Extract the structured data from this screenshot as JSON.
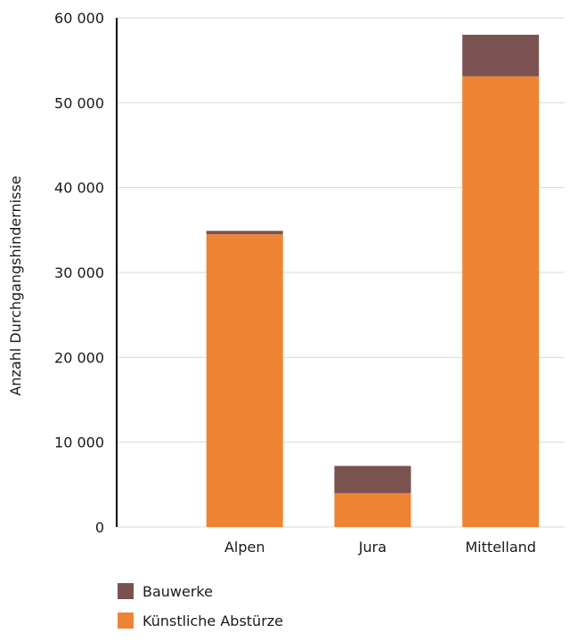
{
  "chart_data": {
    "type": "bar",
    "stacked": true,
    "categories": [
      "Alpen",
      "Jura",
      "Mittelland"
    ],
    "series": [
      {
        "name": "Künstliche Abstürze",
        "color": "#ee8433",
        "values": [
          34500,
          4000,
          53100
        ]
      },
      {
        "name": "Bauwerke",
        "color": "#7a5250",
        "values": [
          400,
          3200,
          4900
        ]
      }
    ],
    "ylabel": "Anzahl Durchgangshindernisse",
    "xlabel": "",
    "ylim": [
      0,
      60000
    ],
    "yticks": [
      0,
      10000,
      20000,
      30000,
      40000,
      50000,
      60000
    ],
    "ytick_labels": [
      "0",
      "10 000",
      "20 000",
      "30 000",
      "40 000",
      "50 000",
      "60 000"
    ],
    "grid": true,
    "legend_position": "bottom-left",
    "legend_order": [
      "Bauwerke",
      "Künstliche Abstürze"
    ]
  }
}
